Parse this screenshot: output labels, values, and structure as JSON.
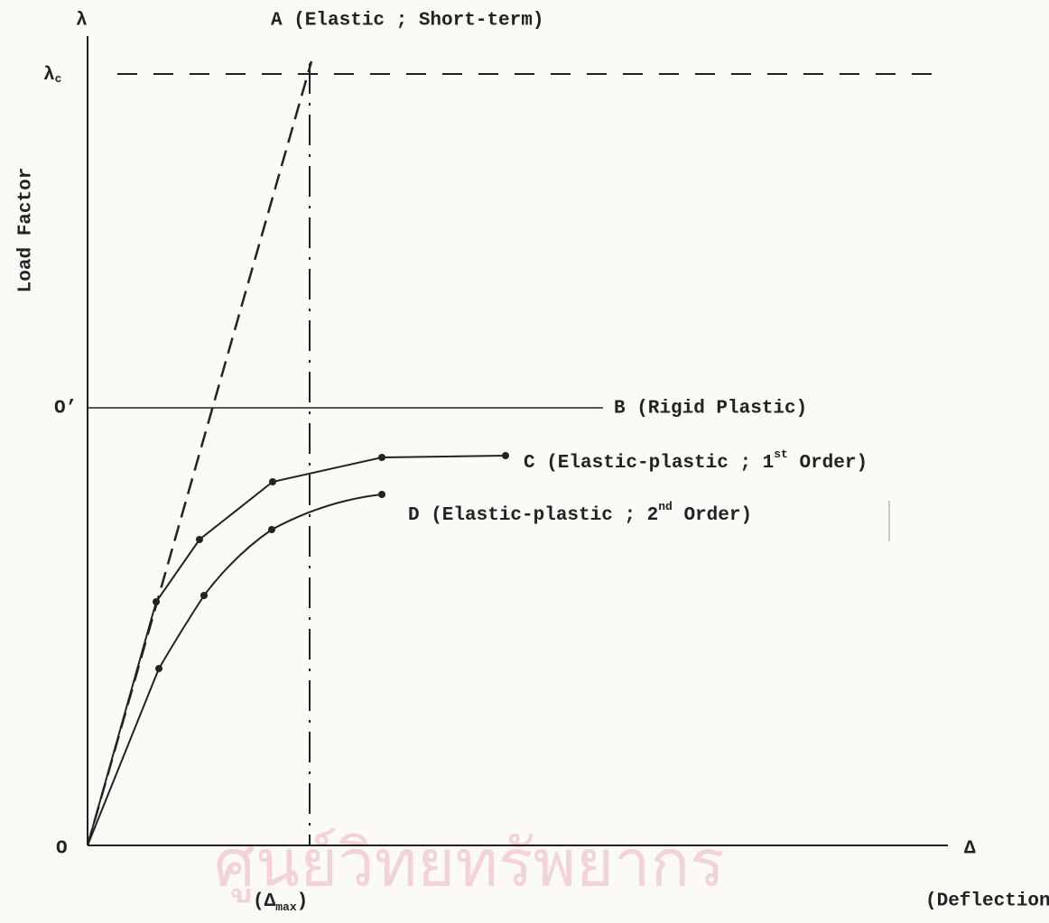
{
  "axes": {
    "y_symbol": "λ",
    "y_label": "Load Factor",
    "critical": {
      "symbol": "λ",
      "subscript": "c"
    },
    "yield_level": "O’",
    "origin": "O",
    "x_symbol": "Δ",
    "x_label": "(Deflection)",
    "max_deflection": {
      "open": "(Δ",
      "subscript": "max",
      "close": ")"
    }
  },
  "curves": [
    {
      "label": "A (Elastic ; Short-term)"
    },
    {
      "label": "B (Rigid Plastic)"
    },
    {
      "label": "C (Elastic-plastic ; 1",
      "sup": "st",
      "tail": " Order)"
    },
    {
      "label": "D (Elastic-plastic ; 2",
      "sup": "nd",
      "tail": " Order)"
    }
  ],
  "watermark": "ศูนย์วิทยทรัพยากร"
}
